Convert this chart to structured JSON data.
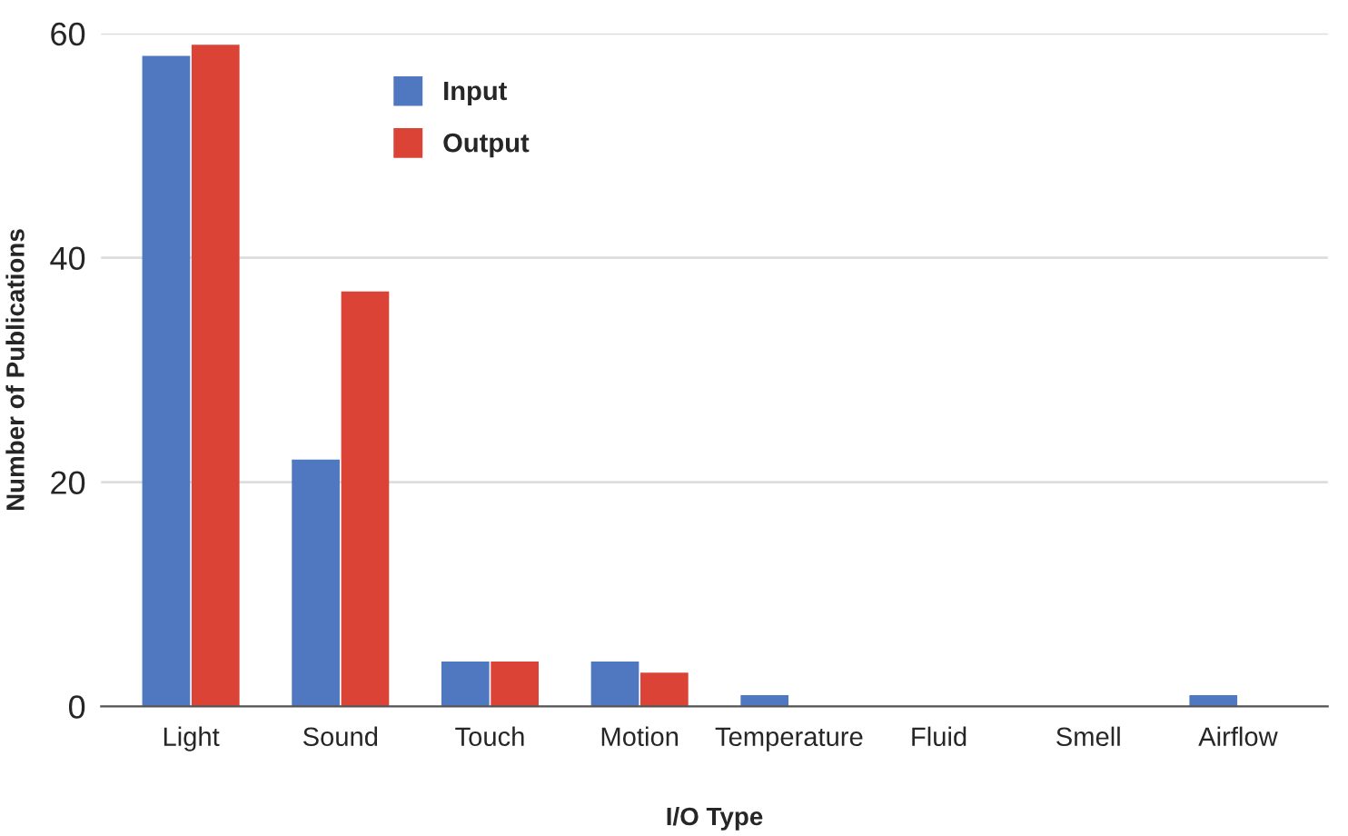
{
  "chart_data": {
    "type": "bar",
    "xlabel": "I/O Type",
    "ylabel": "Number of Publications",
    "categories": [
      "Light",
      "Sound",
      "Touch",
      "Motion",
      "Temperature",
      "Fluid",
      "Smell",
      "Airflow"
    ],
    "series": [
      {
        "name": "Input",
        "color": "#4f78c0",
        "values": [
          58,
          22,
          4,
          4,
          1,
          0,
          0,
          1
        ]
      },
      {
        "name": "Output",
        "color": "#db4337",
        "values": [
          59,
          37,
          4,
          3,
          0,
          0,
          0,
          0
        ]
      }
    ],
    "ylim": [
      0,
      60
    ],
    "yticks": [
      0,
      20,
      40,
      60
    ],
    "grid": "y",
    "legend": "top"
  }
}
